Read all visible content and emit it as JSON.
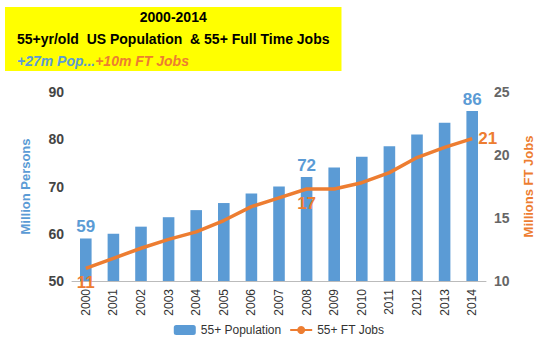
{
  "chart_data": {
    "type": "bar",
    "title": "2000-2014",
    "subtitle": "55+yr/old  US Population  & 55+ Full Time Jobs",
    "headline": [
      "+27m Pop...",
      "+10m FT Jobs"
    ],
    "categories": [
      "2000",
      "2001",
      "2002",
      "2003",
      "2004",
      "2005",
      "2006",
      "2007",
      "2008",
      "2009",
      "2010",
      "2011",
      "2012",
      "2013",
      "2014"
    ],
    "series": [
      {
        "name": "55+ Population",
        "type": "bar",
        "color": "#5b9bd5",
        "values": [
          59,
          60,
          61.5,
          63.5,
          65,
          66.5,
          68.5,
          70,
          72,
          74,
          76.3,
          78.5,
          81,
          83.5,
          86
        ]
      },
      {
        "name": "55+ FT Jobs",
        "type": "line",
        "color": "#ed7d31",
        "axis": "y2",
        "values": [
          11,
          11.8,
          12.6,
          13.3,
          13.9,
          14.8,
          15.9,
          16.6,
          17.3,
          17.3,
          17.8,
          18.6,
          19.8,
          20.6,
          21.3
        ]
      }
    ],
    "ylabel": "Million Persons",
    "y2label": "Millions FT Jobs",
    "ylim": [
      50,
      90
    ],
    "yticks": [
      50,
      60,
      70,
      80,
      90
    ],
    "y2lim": [
      10,
      25
    ],
    "y2ticks": [
      10,
      15,
      20,
      25
    ],
    "grid": false,
    "legend": "bottom",
    "annotations": [
      {
        "text": "59",
        "x": "2000",
        "series": "55+ Population"
      },
      {
        "text": "72",
        "x": "2008",
        "series": "55+ Population"
      },
      {
        "text": "86",
        "x": "2014",
        "series": "55+ Population"
      },
      {
        "text": "11",
        "x": "2000",
        "series": "55+ FT Jobs"
      },
      {
        "text": "17",
        "x": "2008",
        "series": "55+ FT Jobs"
      },
      {
        "text": "21",
        "x": "2014",
        "series": "55+ FT Jobs"
      }
    ]
  }
}
